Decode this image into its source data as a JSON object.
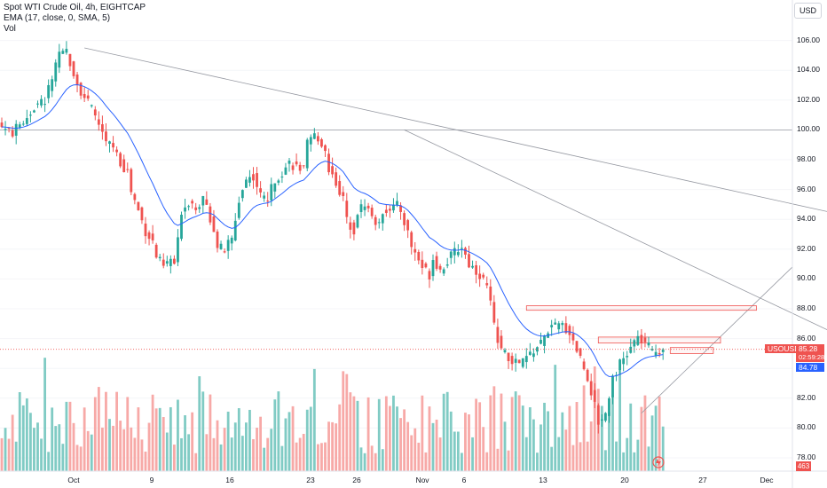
{
  "legend": {
    "symbol": "Spot WTI Crude Oil, 4h, EIGHTCAP",
    "ema": "EMA (17, close, 0, SMA, 5)",
    "vol": "Vol"
  },
  "currency_button": "USD",
  "price_tags": {
    "symbol": "USOUSD",
    "last": "85.28",
    "countdown": "02:59:28",
    "ema": "84.78"
  },
  "volume_tag": "463",
  "colors": {
    "up": "#26a69a",
    "down": "#ef5350",
    "vol_up": "#80cbc4",
    "vol_down": "#f7a9a7",
    "ema": "#2962ff",
    "trendline": "#9598a1",
    "zone": "#ef5350"
  },
  "chart_data": {
    "type": "candlestick",
    "title": "Spot WTI Crude Oil, 4h, EIGHTCAP",
    "y_axis": {
      "ylim": [
        77.0,
        107.5
      ],
      "ticks": [
        "106.00",
        "104.00",
        "102.00",
        "100.00",
        "98.00",
        "96.00",
        "94.00",
        "92.00",
        "90.00",
        "88.00",
        "86.00",
        "84.00",
        "82.00",
        "80.00",
        "78.00"
      ]
    },
    "x_axis": {
      "ticks": [
        "Oct",
        "9",
        "16",
        "23",
        "26",
        "Nov",
        "6",
        "13",
        "20",
        "27",
        "Dec"
      ]
    },
    "close_path": [
      [
        0,
        100.2
      ],
      [
        3,
        99.8
      ],
      [
        6,
        100.6
      ],
      [
        9,
        101.5
      ],
      [
        12,
        102.0
      ],
      [
        14,
        103.5
      ],
      [
        16,
        104.9
      ],
      [
        18,
        105.3
      ],
      [
        19,
        104.6
      ],
      [
        21,
        103.1
      ],
      [
        23,
        102.2
      ],
      [
        25,
        101.4
      ],
      [
        27,
        100.4
      ],
      [
        29,
        99.1
      ],
      [
        31,
        98.9
      ],
      [
        33,
        97.8
      ],
      [
        35,
        97.2
      ],
      [
        36,
        95.9
      ],
      [
        38,
        94.6
      ],
      [
        40,
        93.2
      ],
      [
        42,
        92.5
      ],
      [
        43,
        91.5
      ],
      [
        45,
        90.8
      ],
      [
        47,
        91.3
      ],
      [
        48,
        91.0
      ],
      [
        49,
        92.5
      ],
      [
        50,
        94.6
      ],
      [
        52,
        95.2
      ],
      [
        54,
        94.9
      ],
      [
        56,
        95.3
      ],
      [
        57,
        94.8
      ],
      [
        59,
        93.4
      ],
      [
        60,
        92.2
      ],
      [
        62,
        91.9
      ],
      [
        63,
        92.4
      ],
      [
        64,
        92.6
      ],
      [
        66,
        95.3
      ],
      [
        68,
        96.7
      ],
      [
        70,
        96.9
      ],
      [
        72,
        95.6
      ],
      [
        74,
        95.4
      ],
      [
        76,
        96.7
      ],
      [
        78,
        97.2
      ],
      [
        80,
        97.8
      ],
      [
        82,
        97.5
      ],
      [
        84,
        97.3
      ],
      [
        85,
        99.0
      ],
      [
        87,
        99.6
      ],
      [
        88,
        99.5
      ],
      [
        90,
        98.6
      ],
      [
        91,
        97.4
      ],
      [
        93,
        96.5
      ],
      [
        95,
        95.3
      ],
      [
        96,
        94.0
      ],
      [
        98,
        93.3
      ],
      [
        99,
        94.5
      ],
      [
        101,
        95.1
      ],
      [
        103,
        94.2
      ],
      [
        105,
        93.5
      ],
      [
        106,
        94.6
      ],
      [
        108,
        94.8
      ],
      [
        110,
        94.9
      ],
      [
        111,
        94.6
      ],
      [
        113,
        93.1
      ],
      [
        114,
        92.2
      ],
      [
        116,
        91.3
      ],
      [
        117,
        90.8
      ],
      [
        119,
        90.3
      ],
      [
        120,
        91.4
      ],
      [
        122,
        90.6
      ],
      [
        124,
        91.2
      ],
      [
        126,
        91.8
      ],
      [
        128,
        92.2
      ],
      [
        130,
        91.0
      ],
      [
        131,
        90.8
      ],
      [
        133,
        90.3
      ],
      [
        135,
        89.5
      ],
      [
        136,
        88.3
      ],
      [
        137,
        86.8
      ],
      [
        139,
        85.3
      ],
      [
        141,
        84.6
      ],
      [
        143,
        84.4
      ],
      [
        144,
        84.3
      ],
      [
        146,
        84.7
      ],
      [
        148,
        85.2
      ],
      [
        150,
        85.7
      ],
      [
        152,
        86.6
      ],
      [
        154,
        86.8
      ],
      [
        156,
        86.9
      ],
      [
        158,
        86.4
      ],
      [
        160,
        85.3
      ],
      [
        162,
        84.1
      ],
      [
        164,
        82.5
      ],
      [
        166,
        80.4
      ],
      [
        168,
        81.0
      ],
      [
        170,
        83.5
      ],
      [
        172,
        84.3
      ],
      [
        174,
        84.9
      ],
      [
        176,
        85.8
      ],
      [
        177,
        86.0
      ],
      [
        179,
        85.7
      ],
      [
        181,
        85.1
      ],
      [
        183,
        85.2
      ],
      [
        184,
        85.28
      ]
    ],
    "ema": {
      "name": "EMA (17, close, 0, SMA, 5)",
      "last": 84.78
    },
    "last_price": 85.28,
    "trendlines": [
      {
        "from": [
          23,
          105.5
        ],
        "to": [
          296,
          91.0
        ]
      },
      {
        "from": [
          112,
          100.0
        ],
        "to": [
          270,
          82.0
        ]
      },
      {
        "from": [
          178,
          81.0
        ],
        "to": [
          220,
          90.8
        ]
      }
    ],
    "horizontal_line": 100.0,
    "zones": [
      {
        "from": [
          146,
          88.2
        ],
        "to": [
          210,
          87.9
        ]
      },
      {
        "from": [
          166,
          86.1
        ],
        "to": [
          200,
          85.7
        ]
      },
      {
        "from": [
          186,
          85.4
        ],
        "to": [
          198,
          85.0
        ]
      }
    ]
  }
}
